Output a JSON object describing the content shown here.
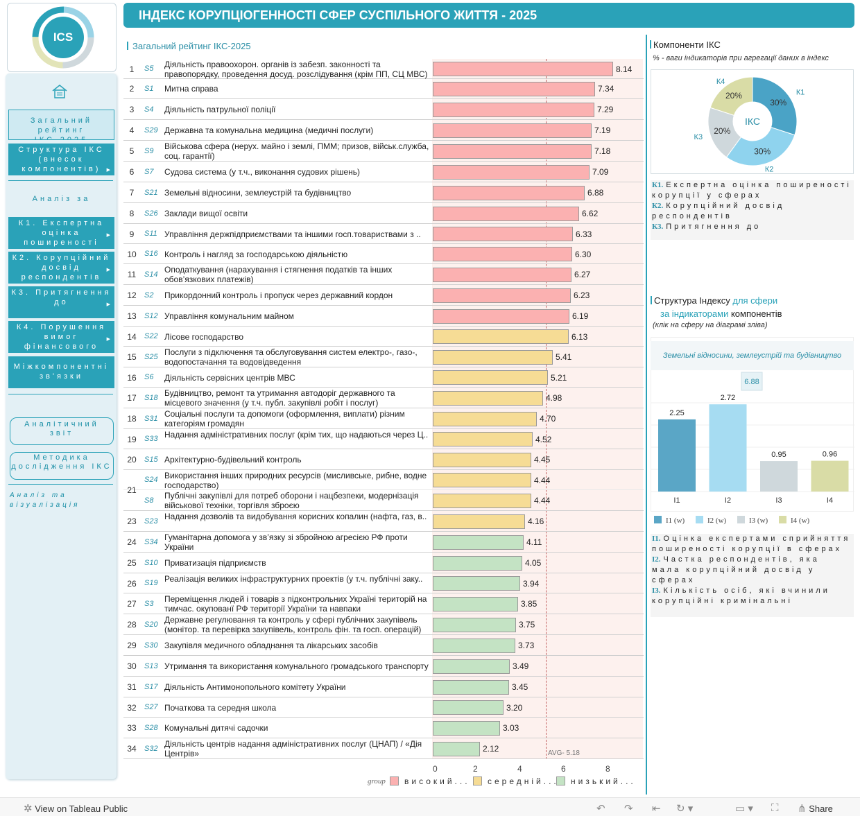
{
  "logo": {
    "text": "ICS"
  },
  "header": {
    "title": "ІНДЕКС КОРУПЦІОГЕННОСТІ СФЕР СУСПІЛЬНОГО ЖИТТЯ - 2025"
  },
  "sidebar": {
    "home_icon": "home-icon",
    "nav_active": "Загальний рейтинг ІКС-2025",
    "nav_structure": "Структура ІКС (внесок компонентів)",
    "analysis_title": "Аналіз за",
    "k1": "К1. Експертна оцінка поширеності",
    "k2": "К2. Корупційний досвід респондентів",
    "k3": "К3. Притягнення до",
    "k4": "К4. Порушення вимог фінансового",
    "inter": "Міжкомпонентні зв'язки",
    "report": "Аналітичний звіт",
    "method": "Методика дослідження ІКС",
    "viz": "Аналіз та візуалізація"
  },
  "ranking": {
    "title": "Загальний рейтинг ІКС-2025",
    "avg_label": "AVG- 5.18",
    "avg": 5.18,
    "axis_ticks": [
      "0",
      "2",
      "4",
      "6",
      "8"
    ],
    "legend_title": "group",
    "legend": [
      "високий...",
      "середній...",
      "низький..."
    ],
    "colors": {
      "high": "#fbb1b1",
      "mid": "#f6dc95",
      "low": "#c4e3c4"
    },
    "rows": [
      {
        "rank": "1",
        "code": "S5",
        "name": "Діяльність правоохорон. органів із забезп. законності та правопорядку, проведення досуд. розслідування (крім ПП, СЦ МВС)",
        "value": 8.14,
        "label": "8.14",
        "group": "high"
      },
      {
        "rank": "2",
        "code": "S1",
        "name": "Митна справа",
        "value": 7.34,
        "label": "7.34",
        "group": "high"
      },
      {
        "rank": "3",
        "code": "S4",
        "name": "Діяльність патрульної поліції",
        "value": 7.29,
        "label": "7.29",
        "group": "high"
      },
      {
        "rank": "4",
        "code": "S29",
        "name": "Державна та комунальна медицина (медичні послуги)",
        "value": 7.19,
        "label": "7.19",
        "group": "high"
      },
      {
        "rank": "5",
        "code": "S9",
        "name": "Військова сфера (нерух. майно і землі, ПММ; призов, військ.служба, соц. гарантії)",
        "value": 7.18,
        "label": "7.18",
        "group": "high"
      },
      {
        "rank": "6",
        "code": "S7",
        "name": "Судова система (у т.ч., виконання судових рішень)",
        "value": 7.09,
        "label": "7.09",
        "group": "high"
      },
      {
        "rank": "7",
        "code": "S21",
        "name": "Земельні відносини, землеустрій та будівництво",
        "value": 6.88,
        "label": "6.88",
        "group": "high"
      },
      {
        "rank": "8",
        "code": "S26",
        "name": "Заклади вищої освіти",
        "value": 6.62,
        "label": "6.62",
        "group": "high"
      },
      {
        "rank": "9",
        "code": "S11",
        "name": "Управління держпідприємствами та іншими госп.товариствами з ..",
        "value": 6.33,
        "label": "6.33",
        "group": "high"
      },
      {
        "rank": "10",
        "code": "S16",
        "name": "Контроль і нагляд за господарською діяльністю",
        "value": 6.3,
        "label": "6.30",
        "group": "high"
      },
      {
        "rank": "11",
        "code": "S14",
        "name": "Оподаткування (нарахування і стягнення податків та інших обов’язкових платежів)",
        "value": 6.27,
        "label": "6.27",
        "group": "high"
      },
      {
        "rank": "12",
        "code": "S2",
        "name": "Прикордонний контроль і пропуск через державний кордон",
        "value": 6.23,
        "label": "6.23",
        "group": "high"
      },
      {
        "rank": "13",
        "code": "S12",
        "name": "Управління комунальним майном",
        "value": 6.19,
        "label": "6.19",
        "group": "high"
      },
      {
        "rank": "14",
        "code": "S22",
        "name": "Лісове господарство",
        "value": 6.13,
        "label": "6.13",
        "group": "mid"
      },
      {
        "rank": "15",
        "code": "S25",
        "name": "Послуги з підключення та обслуговування систем електро-, газо-, водопостачання та водовідведення",
        "value": 5.41,
        "label": "5.41",
        "group": "mid"
      },
      {
        "rank": "16",
        "code": "S6",
        "name": "Діяльність сервісних центрів МВС",
        "value": 5.21,
        "label": "5.21",
        "group": "mid"
      },
      {
        "rank": "17",
        "code": "S18",
        "name": "Будівництво, ремонт та утримання автодоріг державного та місцевого значення (у т.ч. публ. закупівлі робіт і послуг)",
        "value": 4.98,
        "label": "4.98",
        "group": "mid"
      },
      {
        "rank": "18",
        "code": "S31",
        "name": "Соціальні послуги та допомоги (оформлення, виплати) різним категоріям громадян",
        "value": 4.7,
        "label": "4.70",
        "group": "mid"
      },
      {
        "rank": "19",
        "code": "S33",
        "name": "Надання адміністративних послуг (крім тих, що надаються через Ц..",
        "value": 4.52,
        "label": "4.52",
        "group": "mid"
      },
      {
        "rank": "20",
        "code": "S15",
        "name": "Архітектурно-будівельний контроль",
        "value": 4.45,
        "label": "4.45",
        "group": "mid"
      },
      {
        "rank": "21",
        "code": "S24",
        "name": "Використання інших природних ресурсів (мисливське, рибне, водне господарство)",
        "value": 4.44,
        "label": "4.44",
        "group": "mid"
      },
      {
        "rank": "",
        "code": "S8",
        "name": "Публічні закупівлі для потреб оборони і нацбезпеки, модернізація військової техніки, торгівля зброєю",
        "value": 4.44,
        "label": "4.44",
        "group": "mid"
      },
      {
        "rank": "23",
        "code": "S23",
        "name": "Надання дозволів та видобування корисних копалин (нафта, газ, в..",
        "value": 4.16,
        "label": "4.16",
        "group": "mid"
      },
      {
        "rank": "24",
        "code": "S34",
        "name": "Гуманітарна допомога у зв’язку зі збройною агресією РФ проти України",
        "value": 4.11,
        "label": "4.11",
        "group": "low"
      },
      {
        "rank": "25",
        "code": "S10",
        "name": "Приватизація підприємств",
        "value": 4.05,
        "label": "4.05",
        "group": "low"
      },
      {
        "rank": "26",
        "code": "S19",
        "name": "Реалізація великих інфраструктурних проектів (у т.ч. публічні заку..",
        "value": 3.94,
        "label": "3.94",
        "group": "low"
      },
      {
        "rank": "27",
        "code": "S3",
        "name": "Переміщення людей і товарів з підконтрольних Україні територій на тимчас. окупованї РФ території України та навпаки",
        "value": 3.85,
        "label": "3.85",
        "group": "low"
      },
      {
        "rank": "28",
        "code": "S20",
        "name": "Державне регулювання та контроль у сфері публічних закупівель (монітор. та перевірка закупівель, контроль фін. та госп. операцій)",
        "value": 3.75,
        "label": "3.75",
        "group": "low"
      },
      {
        "rank": "29",
        "code": "S30",
        "name": "Закупівля медичного обладнання та лікарських засобів",
        "value": 3.73,
        "label": "3.73",
        "group": "low"
      },
      {
        "rank": "30",
        "code": "S13",
        "name": "Утримання та використання комунального громадського транспорту",
        "value": 3.49,
        "label": "3.49",
        "group": "low"
      },
      {
        "rank": "31",
        "code": "S17",
        "name": "Діяльність Антимонопольного комітету України",
        "value": 3.45,
        "label": "3.45",
        "group": "low"
      },
      {
        "rank": "32",
        "code": "S27",
        "name": "Початкова та середня школа",
        "value": 3.2,
        "label": "3.20",
        "group": "low"
      },
      {
        "rank": "33",
        "code": "S28",
        "name": "Комунальні дитячі садочки",
        "value": 3.03,
        "label": "3.03",
        "group": "low"
      },
      {
        "rank": "34",
        "code": "S32",
        "name": "Діяльність центрів надання адміністративних послуг (ЦНАП) / «Дія Центрів»",
        "value": 2.12,
        "label": "2.12",
        "group": "low"
      }
    ]
  },
  "components": {
    "title": "Компоненти ІКС",
    "subtitle": "% - ваги індикаторів при агрегації даних в індекс",
    "center": "ІКС",
    "slices": [
      {
        "name": "К1",
        "pct": "30%",
        "value": 30,
        "color": "#4aa3c6"
      },
      {
        "name": "К2",
        "pct": "30%",
        "value": 30,
        "color": "#8fd3ee"
      },
      {
        "name": "К3",
        "pct": "20%",
        "value": 20,
        "color": "#cfd8dc"
      },
      {
        "name": "К4",
        "pct": "20%",
        "value": 20,
        "color": "#d9dca6"
      }
    ],
    "defs": [
      {
        "k": "К1.",
        "text": "Експертна оцінка поширеності корупції у сферах"
      },
      {
        "k": "К2.",
        "text": "Корупційний досвід респондентів"
      },
      {
        "k": "К3.",
        "text": "Притягнення до"
      }
    ]
  },
  "structure": {
    "title_a": "Структура Індексу",
    "title_b": "для сфери",
    "title_c": "за індикаторами",
    "title_d": "компонентів",
    "hint": "(клік на сферу на діаграмі зліва)",
    "sphere": "Земельні відносини, землеустрій та будівництво",
    "total": "6.88",
    "chart_data": {
      "type": "bar",
      "categories": [
        "I1",
        "I2",
        "I3",
        "I4"
      ],
      "values": [
        2.25,
        2.72,
        0.95,
        0.96
      ],
      "labels": [
        "2.25",
        "2.72",
        "0.95",
        "0.96"
      ],
      "colors": [
        "#5aa6c6",
        "#a6dcf2",
        "#cfd8dc",
        "#d9dca6"
      ],
      "ylim": [
        0,
        3.2
      ]
    },
    "legend": [
      "I1 (w)",
      "I2 (w)",
      "I3 (w)",
      "I4 (w)"
    ],
    "defs": [
      {
        "k": "І1.",
        "text": "Оцінка експертами сприйняття поширеності корупції в сферах"
      },
      {
        "k": "І2.",
        "text": "Частка респондентів, яка мала корупційний досвід у сферах"
      },
      {
        "k": "І3.",
        "text": "Кількість осіб, які вчинили корупційні кримінальні"
      }
    ]
  },
  "footer": {
    "view": "View on Tableau Public",
    "share": "Share"
  }
}
